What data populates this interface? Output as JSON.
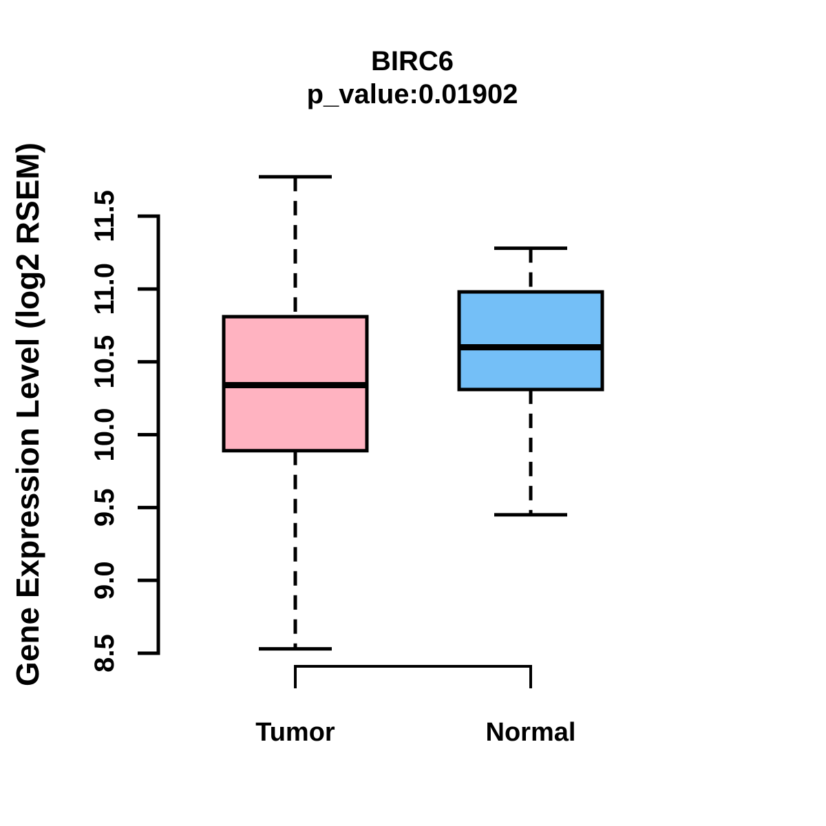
{
  "chart_data": {
    "type": "boxplot",
    "title": "BIRC6",
    "subtitle": "p_value:0.01902",
    "ylabel": "Gene Expression Level (log2 RSEM)",
    "xlabel": "",
    "ylim": [
      8.5,
      11.5
    ],
    "yticks": [
      11.5,
      11.0,
      10.5,
      10.0,
      9.5,
      9.0,
      8.5
    ],
    "ytick_labels": [
      "11.5",
      "11.0",
      "10.5",
      "10.0",
      "9.5",
      "9.0",
      "8.5"
    ],
    "categories": [
      "Tumor",
      "Normal"
    ],
    "grid": "off",
    "legend": "none",
    "series": [
      {
        "name": "Tumor",
        "color": "#FFB3C1",
        "whisker_low": 8.53,
        "q1": 9.89,
        "median": 10.34,
        "q3": 10.81,
        "whisker_high": 11.77
      },
      {
        "name": "Normal",
        "color": "#74BFF7",
        "whisker_low": 9.45,
        "q1": 10.31,
        "median": 10.6,
        "q3": 10.98,
        "whisker_high": 11.28
      }
    ],
    "colors": {
      "tumor_fill": "#FFB3C1",
      "normal_fill": "#74BFF7",
      "stroke": "#000000",
      "background": "#FFFFFF"
    }
  }
}
